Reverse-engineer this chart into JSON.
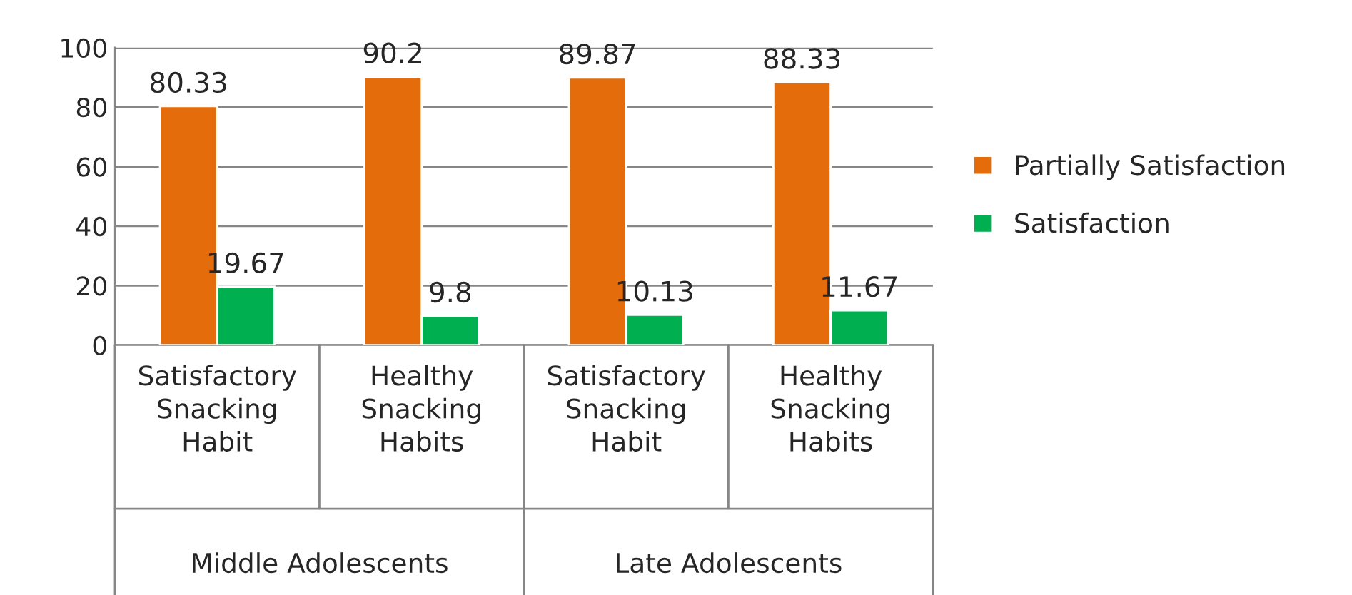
{
  "chart_data": {
    "type": "bar",
    "categories": [
      "Satisfactory\nSnacking\nHabit",
      "Healthy\nSnacking\nHabits",
      "Satisfactory\nSnacking\nHabit",
      "Healthy\nSnacking\nHabits"
    ],
    "series": [
      {
        "name": "Partially Satisfaction",
        "color": "#e46c0a",
        "values": [
          80.33,
          90.2,
          89.87,
          88.33
        ]
      },
      {
        "name": "Satisfaction",
        "color": "#00b050",
        "values": [
          19.67,
          9.8,
          10.13,
          11.67
        ]
      }
    ],
    "annotations": [
      "Middle Adolescents",
      "Late Adolescents"
    ],
    "ylim": [
      0,
      100
    ],
    "yticks": [
      0,
      20,
      40,
      60,
      80,
      100
    ],
    "grid": "y",
    "legend": "right",
    "data_labels": true
  }
}
